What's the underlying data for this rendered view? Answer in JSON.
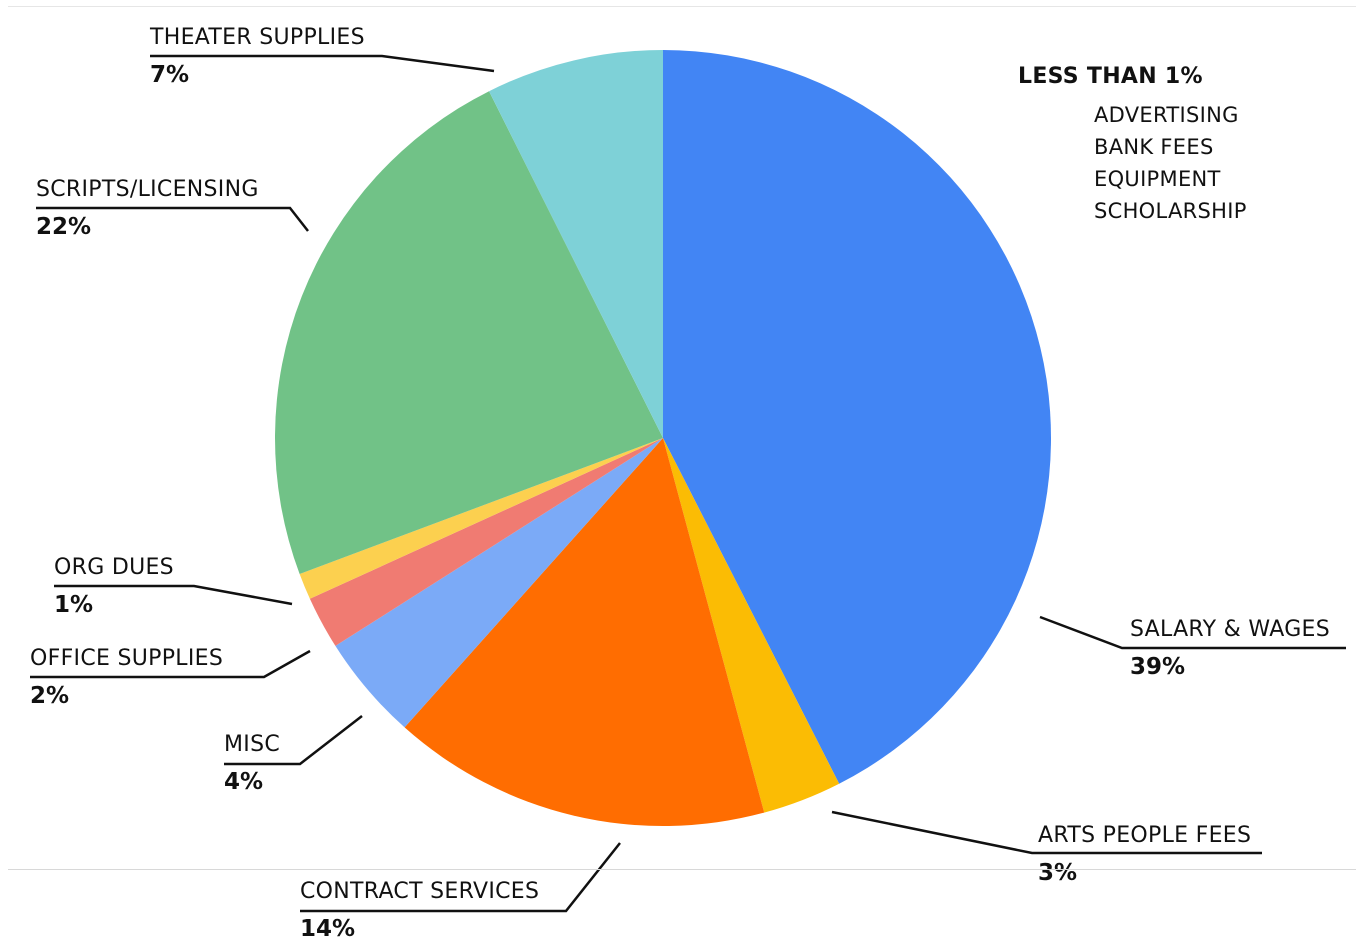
{
  "chart_data": {
    "type": "pie",
    "title": "",
    "slices": [
      {
        "label": "SALARY & WAGES",
        "percent_label": "39%",
        "value": 42.5,
        "color": "#4285f4"
      },
      {
        "label": "ARTS PEOPLE FEES",
        "percent_label": "3%",
        "value": 3.3,
        "color": "#fbbc04"
      },
      {
        "label": "CONTRACT SERVICES",
        "percent_label": "14%",
        "value": 15.8,
        "color": "#ff6d01"
      },
      {
        "label": "MISC",
        "percent_label": "4%",
        "value": 4.4,
        "color": "#7baaf7"
      },
      {
        "label": "OFFICE SUPPLIES",
        "percent_label": "2%",
        "value": 2.2,
        "color": "#f07b72"
      },
      {
        "label": "ORG DUES",
        "percent_label": "1%",
        "value": 1.1,
        "color": "#fcd04f"
      },
      {
        "label": "SCRIPTS/LICENSING",
        "percent_label": "22%",
        "value": 23.3,
        "color": "#71c287"
      },
      {
        "label": "THEATER SUPPLIES",
        "percent_label": "7%",
        "value": 7.4,
        "color": "#7ed1d7"
      }
    ],
    "start_angle_deg": 0,
    "direction": "clockwise"
  },
  "note": {
    "title": "LESS THAN 1%",
    "items": [
      "ADVERTISING",
      "BANK FEES",
      "EQUIPMENT",
      "SCHOLARSHIP"
    ]
  }
}
